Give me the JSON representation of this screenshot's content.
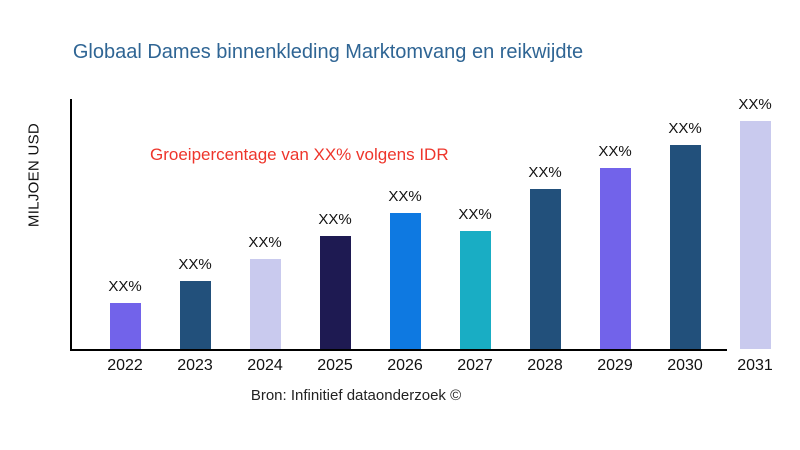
{
  "page": {
    "background": "#ffffff"
  },
  "chart_data": {
    "type": "bar",
    "title": "Globaal Dames binnenkleding Marktomvang en reikwijdte",
    "title_color": "#2f6594",
    "ylabel": "MILJOEN USD",
    "xlabel": "",
    "categories": [
      "2022",
      "2023",
      "2024",
      "2025",
      "2026",
      "2027",
      "2028",
      "2029",
      "2030",
      "2031"
    ],
    "values": [
      46,
      68,
      90,
      113,
      136,
      118,
      160,
      181,
      204,
      228
    ],
    "value_labels": [
      "XX%",
      "XX%",
      "XX%",
      "XX%",
      "XX%",
      "XX%",
      "XX%",
      "XX%",
      "XX%",
      "XX%"
    ],
    "bar_colors": [
      "#7263ea",
      "#22507b",
      "#c9caee",
      "#1e1a52",
      "#0e79e1",
      "#19adc4",
      "#22507b",
      "#7263ea",
      "#22507b",
      "#c9caee"
    ],
    "ylim": [
      0,
      252
    ],
    "value_axis_ticks_shown": false,
    "grid": false,
    "legend": false,
    "annotation": "Groeipercentage van XX% volgens IDR",
    "annotation_color": "#ee352b",
    "source": "Bron: Infinitief dataonderzoek ©",
    "axis_color": "#000000"
  }
}
